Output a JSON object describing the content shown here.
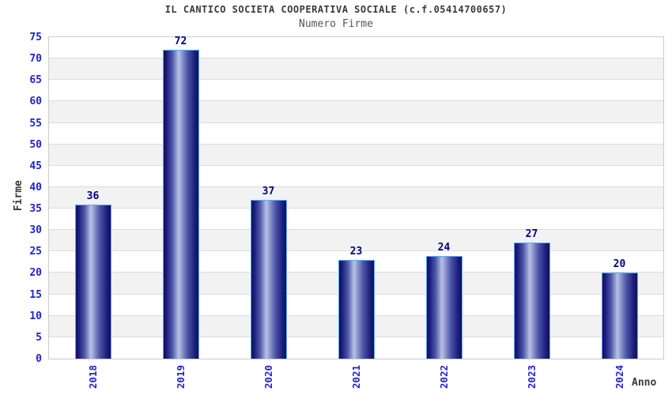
{
  "page": {
    "background": "#ffffff"
  },
  "chart_data": {
    "type": "bar",
    "title": "IL CANTICO SOCIETA COOPERATIVA SOCIALE (c.f.05414700657)",
    "subtitle": "Numero Firme",
    "xlabel": "Anno",
    "ylabel": "Firme",
    "categories": [
      "2018",
      "2019",
      "2020",
      "2021",
      "2022",
      "2023",
      "2024"
    ],
    "values": [
      36,
      72,
      37,
      23,
      24,
      27,
      20
    ],
    "ylim": [
      0,
      75
    ],
    "yticks": [
      0,
      5,
      10,
      15,
      20,
      25,
      30,
      35,
      40,
      45,
      50,
      55,
      60,
      65,
      70,
      75
    ],
    "grid": true,
    "legend": "none",
    "colors": {
      "background": "#ffffff",
      "plot_border": "#cccccc",
      "band_white": "#ffffff",
      "band_gray": "#f2f2f2",
      "gridline": "#dcdcdc",
      "bar_edge_dark": "#10105c",
      "bar_dark": "#1c1c7c",
      "bar_mid": "#4e58a8",
      "bar_highlight": "#b9c1e6",
      "bar_border": "#5ca8ff",
      "tick_label": "#2121d6",
      "value_label": "#000080",
      "title_color": "#3a3a3a",
      "subtitle_color": "#56565e",
      "axis_title_color": "#3a3a3a"
    }
  }
}
